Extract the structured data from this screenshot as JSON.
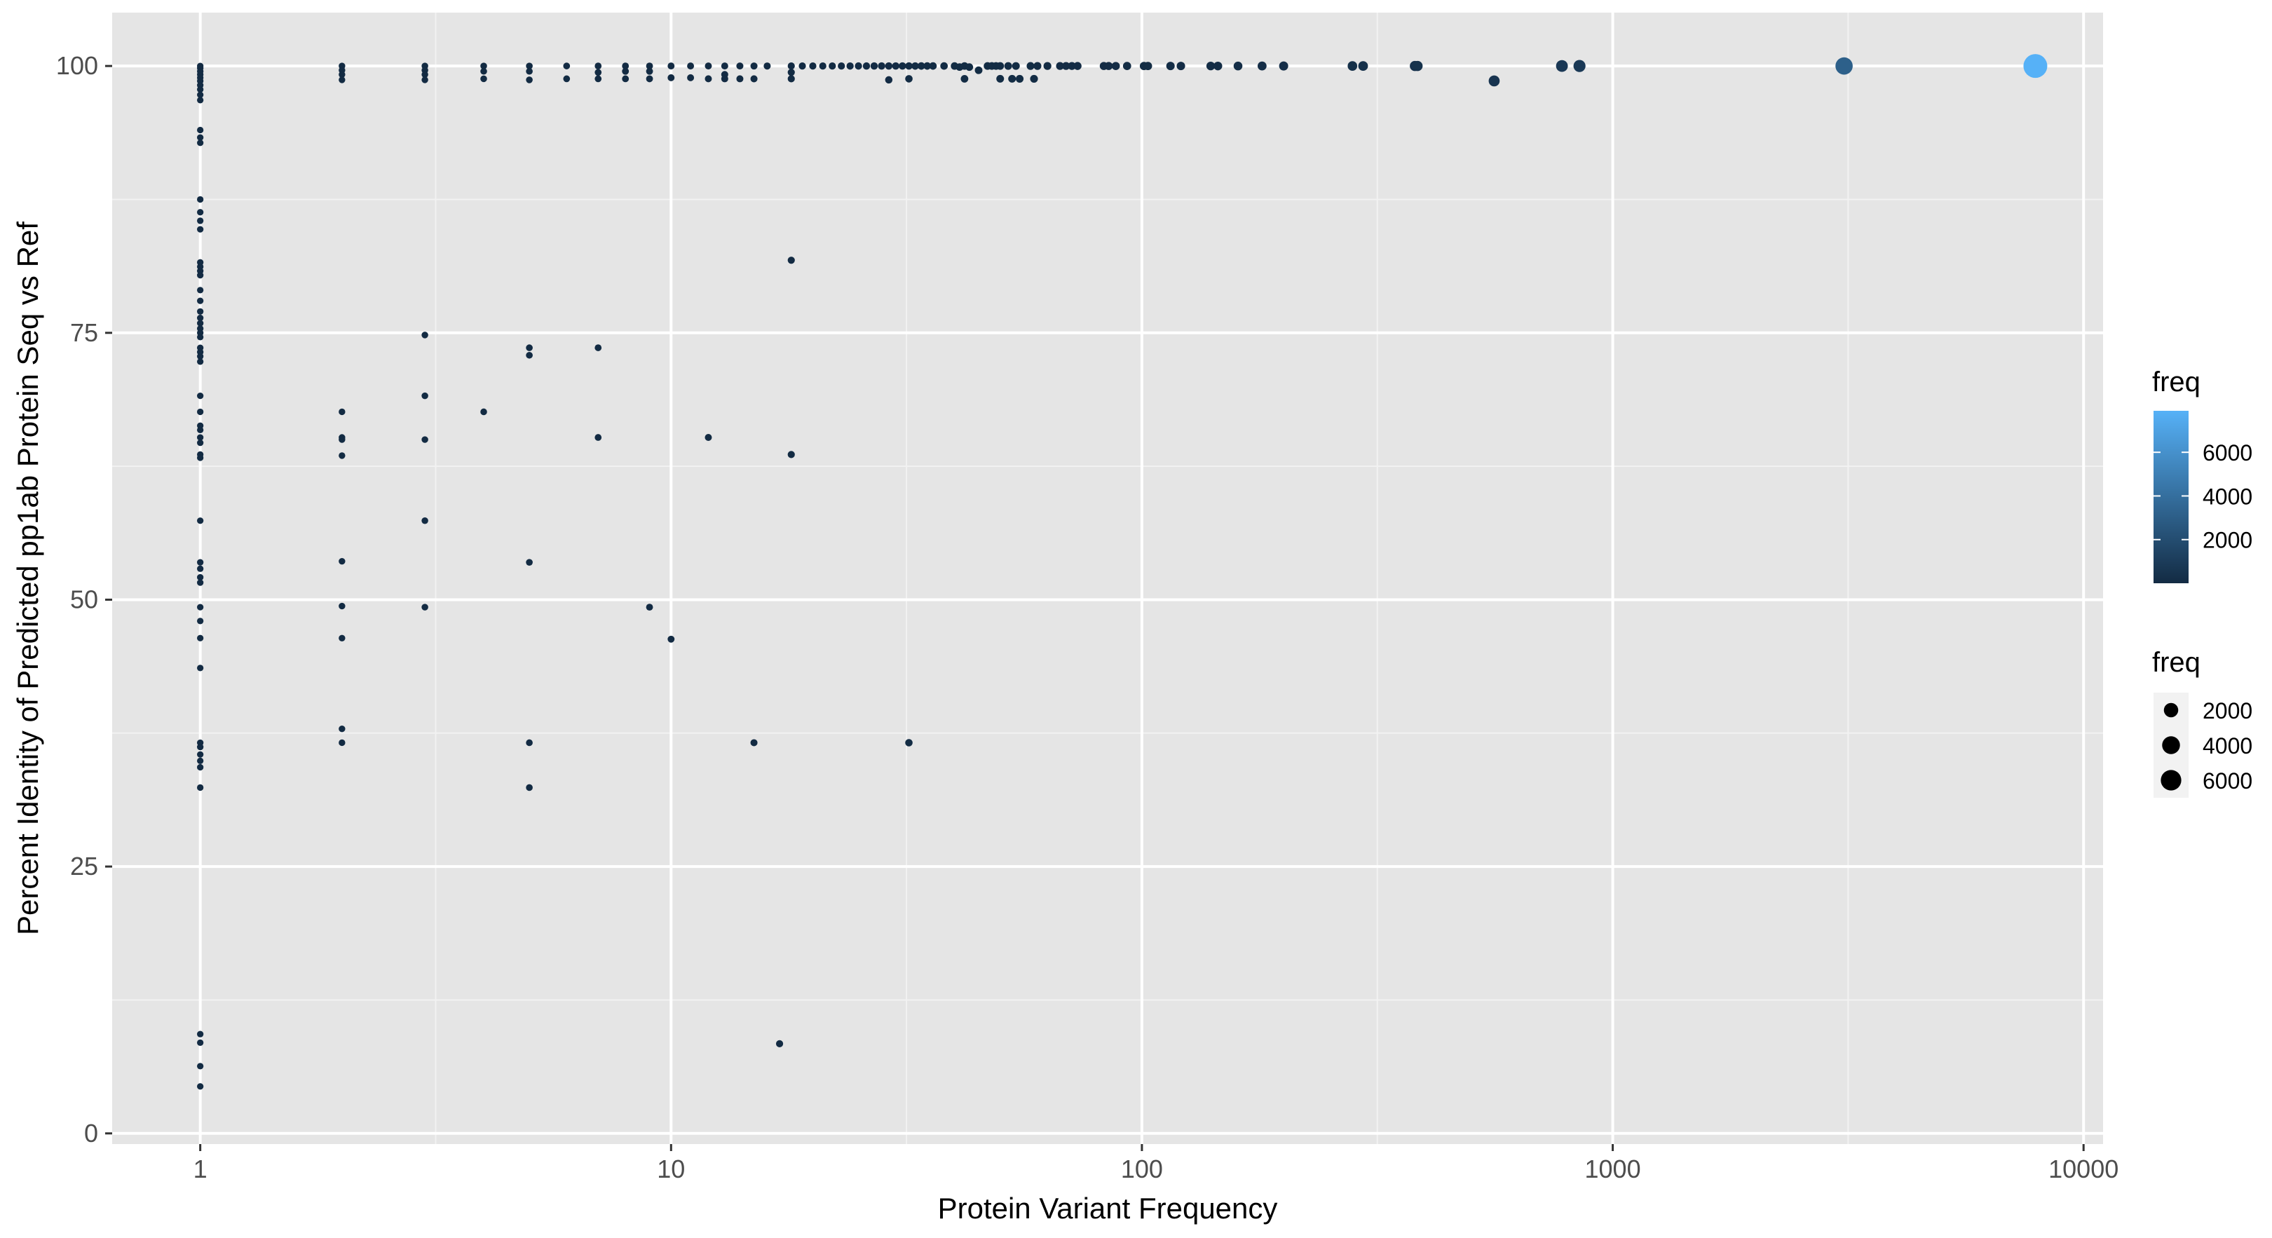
{
  "chart_data": {
    "type": "scatter",
    "title": "",
    "xlabel": "Protein Variant Frequency",
    "ylabel": "Percent Identity of Predicted pp1ab Protein Seq vs Ref",
    "x_scale": "log10",
    "xlim": [
      0.65,
      11000
    ],
    "ylim": [
      -1,
      105
    ],
    "x_ticks": [
      1,
      10,
      100,
      1000,
      10000
    ],
    "x_tick_labels": [
      "1",
      "10",
      "100",
      "1000",
      "10000"
    ],
    "y_ticks": [
      0,
      25,
      50,
      75,
      100
    ],
    "y_tick_labels": [
      "0",
      "25",
      "50",
      "75",
      "100"
    ],
    "grid": true,
    "panel_background": "#e5e5e5",
    "grid_color": "#ffffff",
    "color_scale": {
      "low": "#132b43",
      "high": "#56b1f7",
      "min": 1,
      "max": 7900
    },
    "legends": [
      {
        "type": "colorbar",
        "title": "freq",
        "labels": [
          "2000",
          "4000",
          "6000"
        ],
        "values": [
          2000,
          4000,
          6000
        ],
        "placement": "right"
      },
      {
        "type": "size",
        "title": "freq",
        "labels": [
          "2000",
          "4000",
          "6000"
        ],
        "values": [
          2000,
          4000,
          6000
        ],
        "placement": "right"
      }
    ],
    "series": [
      {
        "points": [
          [
            1,
            100
          ],
          [
            1,
            99.8
          ],
          [
            1,
            99.5
          ],
          [
            1,
            99.2
          ],
          [
            1,
            98.9
          ],
          [
            1,
            98.6
          ],
          [
            1,
            98.2
          ],
          [
            1,
            97.8
          ],
          [
            1,
            97.3
          ],
          [
            1,
            96.8
          ],
          [
            1,
            94
          ],
          [
            1,
            93.3
          ],
          [
            1,
            92.8
          ],
          [
            1,
            87.5
          ],
          [
            1,
            86.3
          ],
          [
            1,
            85.5
          ],
          [
            1,
            84.7
          ],
          [
            1,
            81.6
          ],
          [
            1,
            81.2
          ],
          [
            1,
            80.8
          ],
          [
            1,
            80.4
          ],
          [
            1,
            79
          ],
          [
            1,
            78
          ],
          [
            1,
            77
          ],
          [
            1,
            76.4
          ],
          [
            1,
            75.9
          ],
          [
            1,
            75.4
          ],
          [
            1,
            75
          ],
          [
            1,
            74.6
          ],
          [
            1,
            73.6
          ],
          [
            1,
            73.2
          ],
          [
            1,
            72.8
          ],
          [
            1,
            72.3
          ],
          [
            1,
            69.1
          ],
          [
            1,
            67.6
          ],
          [
            1,
            66.3
          ],
          [
            1,
            65.9
          ],
          [
            1,
            65.2
          ],
          [
            1,
            64.7
          ],
          [
            1,
            63.6
          ],
          [
            1,
            63.3
          ],
          [
            1,
            57.4
          ],
          [
            1,
            53.5
          ],
          [
            1,
            52.9
          ],
          [
            1,
            52.1
          ],
          [
            1,
            51.6
          ],
          [
            1,
            49.3
          ],
          [
            1,
            48
          ],
          [
            1,
            46.4
          ],
          [
            1,
            43.6
          ],
          [
            1,
            36.6
          ],
          [
            1,
            36.2
          ],
          [
            1,
            35.5
          ],
          [
            1,
            34.9
          ],
          [
            1,
            34.3
          ],
          [
            1,
            32.4
          ],
          [
            1,
            9.3
          ],
          [
            1,
            8.5
          ],
          [
            1,
            6.3
          ],
          [
            1,
            4.4
          ],
          [
            2,
            100
          ],
          [
            2,
            99.6
          ],
          [
            2,
            99.2
          ],
          [
            2,
            98.7
          ],
          [
            2,
            67.6
          ],
          [
            2,
            65.2
          ],
          [
            2,
            65
          ],
          [
            2,
            63.5
          ],
          [
            2,
            53.6
          ],
          [
            2,
            49.4
          ],
          [
            2,
            46.4
          ],
          [
            2,
            37.9
          ],
          [
            2,
            36.6
          ],
          [
            3,
            100
          ],
          [
            3,
            99.6
          ],
          [
            3,
            99.2
          ],
          [
            3,
            98.7
          ],
          [
            3,
            74.8
          ],
          [
            3,
            69.1
          ],
          [
            3,
            65
          ],
          [
            3,
            57.4
          ],
          [
            3,
            49.3
          ],
          [
            4,
            100
          ],
          [
            4,
            99.5
          ],
          [
            4,
            98.8
          ],
          [
            4,
            67.6
          ],
          [
            5,
            100
          ],
          [
            5,
            99.5
          ],
          [
            5,
            98.7
          ],
          [
            5,
            73.6
          ],
          [
            5,
            72.9
          ],
          [
            5,
            53.5
          ],
          [
            5,
            36.6
          ],
          [
            5,
            32.4
          ],
          [
            6,
            100
          ],
          [
            6,
            98.8
          ],
          [
            7,
            100
          ],
          [
            7,
            99.4
          ],
          [
            7,
            98.8
          ],
          [
            7,
            73.6
          ],
          [
            7,
            65.2
          ],
          [
            8,
            100
          ],
          [
            8,
            99.5
          ],
          [
            8,
            98.8
          ],
          [
            9,
            100
          ],
          [
            9,
            99.5
          ],
          [
            9,
            98.8
          ],
          [
            9,
            49.3
          ],
          [
            10,
            100
          ],
          [
            10,
            98.9
          ],
          [
            10,
            46.3
          ],
          [
            11,
            100
          ],
          [
            11,
            98.9
          ],
          [
            12,
            100
          ],
          [
            12,
            98.8
          ],
          [
            12,
            65.2
          ],
          [
            13,
            100
          ],
          [
            13,
            99.2
          ],
          [
            13,
            98.8
          ],
          [
            14,
            100
          ],
          [
            14,
            98.8
          ],
          [
            15,
            100
          ],
          [
            15,
            98.8
          ],
          [
            15,
            36.6
          ],
          [
            16,
            100
          ],
          [
            17,
            8.4
          ],
          [
            18,
            100
          ],
          [
            18,
            99.4
          ],
          [
            18,
            98.8
          ],
          [
            18,
            81.8
          ],
          [
            18,
            63.6
          ],
          [
            19,
            100
          ],
          [
            20,
            100
          ],
          [
            21,
            100
          ],
          [
            22,
            100
          ],
          [
            23,
            100
          ],
          [
            24,
            100
          ],
          [
            25,
            100
          ],
          [
            26,
            100
          ],
          [
            27,
            100
          ],
          [
            28,
            100
          ],
          [
            29,
            100
          ],
          [
            29,
            98.7
          ],
          [
            30,
            100
          ],
          [
            31,
            100
          ],
          [
            32,
            100
          ],
          [
            32,
            98.8
          ],
          [
            32,
            36.6
          ],
          [
            33,
            100
          ],
          [
            34,
            100
          ],
          [
            35,
            100
          ],
          [
            36,
            100
          ],
          [
            38,
            100
          ],
          [
            40,
            100
          ],
          [
            41,
            99.9
          ],
          [
            42,
            100
          ],
          [
            42,
            98.8
          ],
          [
            43,
            99.9
          ],
          [
            45,
            99.6
          ],
          [
            47,
            100
          ],
          [
            48,
            100
          ],
          [
            49,
            100
          ],
          [
            50,
            100
          ],
          [
            50,
            98.8
          ],
          [
            52,
            100
          ],
          [
            53,
            98.8
          ],
          [
            54,
            100
          ],
          [
            55,
            98.8
          ],
          [
            58,
            100
          ],
          [
            59,
            98.8
          ],
          [
            60,
            100
          ],
          [
            63,
            100
          ],
          [
            67,
            100
          ],
          [
            69,
            100
          ],
          [
            71,
            100
          ],
          [
            73,
            100
          ],
          [
            83,
            100
          ],
          [
            85,
            100
          ],
          [
            88,
            100
          ],
          [
            93,
            100
          ],
          [
            101,
            100
          ],
          [
            103,
            100
          ],
          [
            115,
            100
          ],
          [
            121,
            100
          ],
          [
            140,
            100
          ],
          [
            145,
            100
          ],
          [
            160,
            100
          ],
          [
            180,
            100
          ],
          [
            200,
            100
          ],
          [
            280,
            100
          ],
          [
            295,
            100
          ],
          [
            380,
            100
          ],
          [
            385,
            100
          ],
          [
            560,
            98.6
          ],
          [
            780,
            100
          ],
          [
            850,
            100
          ],
          [
            3100,
            100
          ],
          [
            7900,
            100
          ]
        ],
        "freq": [
          1,
          1,
          1,
          1,
          1,
          1,
          1,
          1,
          1,
          1,
          1,
          1,
          1,
          1,
          1,
          1,
          1,
          1,
          1,
          1,
          1,
          1,
          1,
          1,
          1,
          1,
          1,
          1,
          1,
          1,
          1,
          1,
          1,
          1,
          1,
          1,
          1,
          1,
          1,
          1,
          1,
          1,
          1,
          1,
          1,
          1,
          1,
          1,
          1,
          1,
          1,
          1,
          1,
          1,
          1,
          1,
          1,
          1,
          1,
          1,
          2,
          2,
          2,
          2,
          2,
          2,
          2,
          2,
          2,
          2,
          2,
          2,
          2,
          3,
          3,
          3,
          3,
          3,
          3,
          3,
          3,
          3,
          4,
          4,
          4,
          4,
          5,
          5,
          5,
          5,
          5,
          5,
          5,
          5,
          6,
          6,
          7,
          7,
          7,
          7,
          7,
          8,
          8,
          8,
          9,
          9,
          9,
          9,
          10,
          10,
          10,
          11,
          11,
          12,
          12,
          12,
          13,
          13,
          13,
          14,
          14,
          15,
          15,
          15,
          16,
          17,
          18,
          18,
          18,
          18,
          18,
          19,
          20,
          21,
          22,
          23,
          24,
          25,
          26,
          27,
          28,
          29,
          29,
          30,
          31,
          32,
          32,
          32,
          33,
          34,
          35,
          36,
          38,
          40,
          41,
          42,
          42,
          43,
          45,
          47,
          48,
          49,
          50,
          50,
          52,
          53,
          54,
          55,
          58,
          59,
          60,
          63,
          67,
          69,
          71,
          73,
          83,
          85,
          88,
          93,
          101,
          103,
          115,
          121,
          140,
          145,
          160,
          180,
          200,
          280,
          295,
          380,
          385,
          560,
          780,
          850,
          3100,
          7900
        ]
      }
    ]
  }
}
